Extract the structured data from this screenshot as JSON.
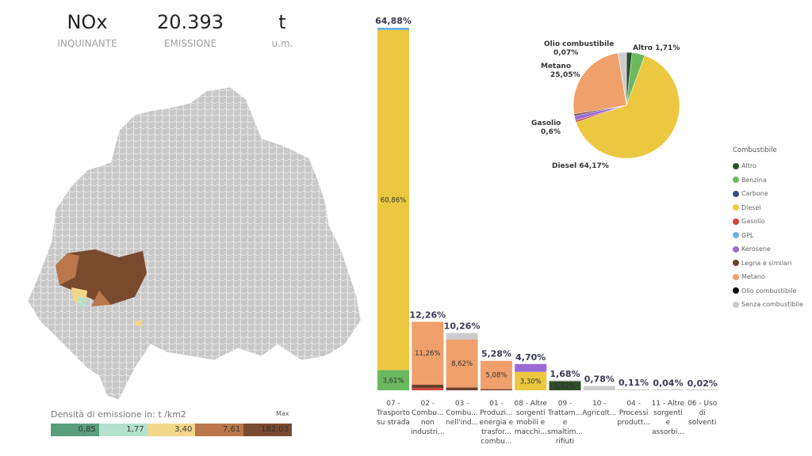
{
  "kpis": [
    {
      "value": "NOx",
      "label": "INQUINANTE"
    },
    {
      "value": "20.393",
      "label": "EMISSIONE"
    },
    {
      "value": "t",
      "label": "u.m."
    }
  ],
  "map_legend": {
    "title": "Densità di emissione in: t /km2",
    "max_label": "Max",
    "classes": [
      {
        "value": "0,85",
        "color": "#5a9e7c"
      },
      {
        "value": "1,77",
        "color": "#b4e2cf"
      },
      {
        "value": "3,40",
        "color": "#f2d78a"
      },
      {
        "value": "7,61",
        "color": "#b9774a"
      },
      {
        "value": "182,03",
        "color": "#7a4a2e"
      }
    ]
  },
  "colors": {
    "Altro": "#2e4d2a",
    "Benzina": "#6ab95f",
    "Carbone": "#3c4a8a",
    "Diesel": "#ebc840",
    "Gasolio": "#d0463a",
    "GPL": "#6cb0e0",
    "Kerosene": "#9a6bd6",
    "Legna e similari": "#6a4030",
    "Metano": "#f0a06a",
    "Olio combustibile": "#111111",
    "Senza combustibile": "#cccccc"
  },
  "chart_data": [
    {
      "type": "bar",
      "stacked": true,
      "categories": [
        "07 - Trasporto su strada",
        "02 - Combu... non industri...",
        "03 - Combu... nell'ind...",
        "01 - Produzi... energia e trasfor... combu...",
        "08 - Altre sorgenti mobili e macchi...",
        "09 - Trattam... e smaltim... rifiuti",
        "10 - Agricolt...",
        "04 - Processi produtt...",
        "11 - Altre sorgenti e assorbi...",
        "06 - Uso di solventi"
      ],
      "category_lines": [
        [
          "07 -",
          "Trasporto",
          "su strada"
        ],
        [
          "02 -",
          "Combu...",
          "non",
          "industri..."
        ],
        [
          "03 -",
          "Combu...",
          "nell'ind..."
        ],
        [
          "01 -",
          "Produzi...",
          "energia e",
          "trasfor...",
          "combu..."
        ],
        [
          "08 - Altre",
          "sorgenti",
          "mobili e",
          "macchi..."
        ],
        [
          "09 -",
          "Trattam...",
          "e",
          "smaltim...",
          "rifiuti"
        ],
        [
          "10 -",
          "Agricolt..."
        ],
        [
          "04 -",
          "Processi",
          "produtt..."
        ],
        [
          "11 - Altre",
          "sorgenti",
          "e",
          "assorbi..."
        ],
        [
          "06 - Uso",
          "di",
          "solventi"
        ]
      ],
      "totals": [
        "64,88%",
        "12,26%",
        "10,26%",
        "5,28%",
        "4,70%",
        "1,68%",
        "0,78%",
        "0,11%",
        "0,04%",
        "0,02%"
      ],
      "total_values": [
        64.88,
        12.26,
        10.26,
        5.28,
        4.7,
        1.68,
        0.78,
        0.11,
        0.04,
        0.02
      ],
      "segments": [
        [
          {
            "fuel": "Benzina",
            "value": 3.61,
            "label": "3,61%"
          },
          {
            "fuel": "Diesel",
            "value": 60.86,
            "label": "60,86%"
          },
          {
            "fuel": "GPL",
            "value": 0.41
          }
        ],
        [
          {
            "fuel": "Gasolio",
            "value": 0.4
          },
          {
            "fuel": "Legna e similari",
            "value": 0.6
          },
          {
            "fuel": "Metano",
            "value": 11.26,
            "label": "11,26%"
          }
        ],
        [
          {
            "fuel": "Legna e similari",
            "value": 0.5
          },
          {
            "fuel": "Metano",
            "value": 8.62,
            "label": "8,62%"
          },
          {
            "fuel": "Senza combustibile",
            "value": 1.14
          }
        ],
        [
          {
            "fuel": "Legna e similari",
            "value": 0.2
          },
          {
            "fuel": "Metano",
            "value": 5.08,
            "label": "5,08%"
          }
        ],
        [
          {
            "fuel": "Diesel",
            "value": 3.3,
            "label": "3,30%"
          },
          {
            "fuel": "Kerosene",
            "value": 1.4
          }
        ],
        [
          {
            "fuel": "Altro",
            "value": 1.62,
            "label": "1,62%"
          },
          {
            "fuel": "Senza combustibile",
            "value": 0.06
          }
        ],
        [
          {
            "fuel": "Senza combustibile",
            "value": 0.78
          }
        ],
        [
          {
            "fuel": "Senza combustibile",
            "value": 0.11
          }
        ],
        [
          {
            "fuel": "Senza combustibile",
            "value": 0.04
          }
        ],
        [
          {
            "fuel": "Senza combustibile",
            "value": 0.02
          }
        ]
      ]
    },
    {
      "type": "pie",
      "legend_title": "Combustibile",
      "legend": [
        "Altro",
        "Benzina",
        "Carbone",
        "Diesel",
        "Gasolio",
        "GPL",
        "Kerosene",
        "Legna e similari",
        "Metano",
        "Olio combustibile",
        "Senza combustibile"
      ],
      "slices": [
        {
          "name": "Altro",
          "value": 1.71,
          "label": "Altro 1,71%"
        },
        {
          "name": "Benzina",
          "value": 3.9
        },
        {
          "name": "Diesel",
          "value": 64.17,
          "label": "Diesel 64,17%"
        },
        {
          "name": "Gasolio",
          "value": 0.6,
          "label": "Gasolio\n0,6%"
        },
        {
          "name": "Kerosene",
          "value": 1.4
        },
        {
          "name": "Legna e similari",
          "value": 0.6
        },
        {
          "name": "Metano",
          "value": 25.05,
          "label": "Metano\n25,05%"
        },
        {
          "name": "Olio combustibile",
          "value": 0.07,
          "label": "Olio combustibile\n0,07%"
        },
        {
          "name": "Senza combustibile",
          "value": 2.5
        }
      ]
    }
  ]
}
